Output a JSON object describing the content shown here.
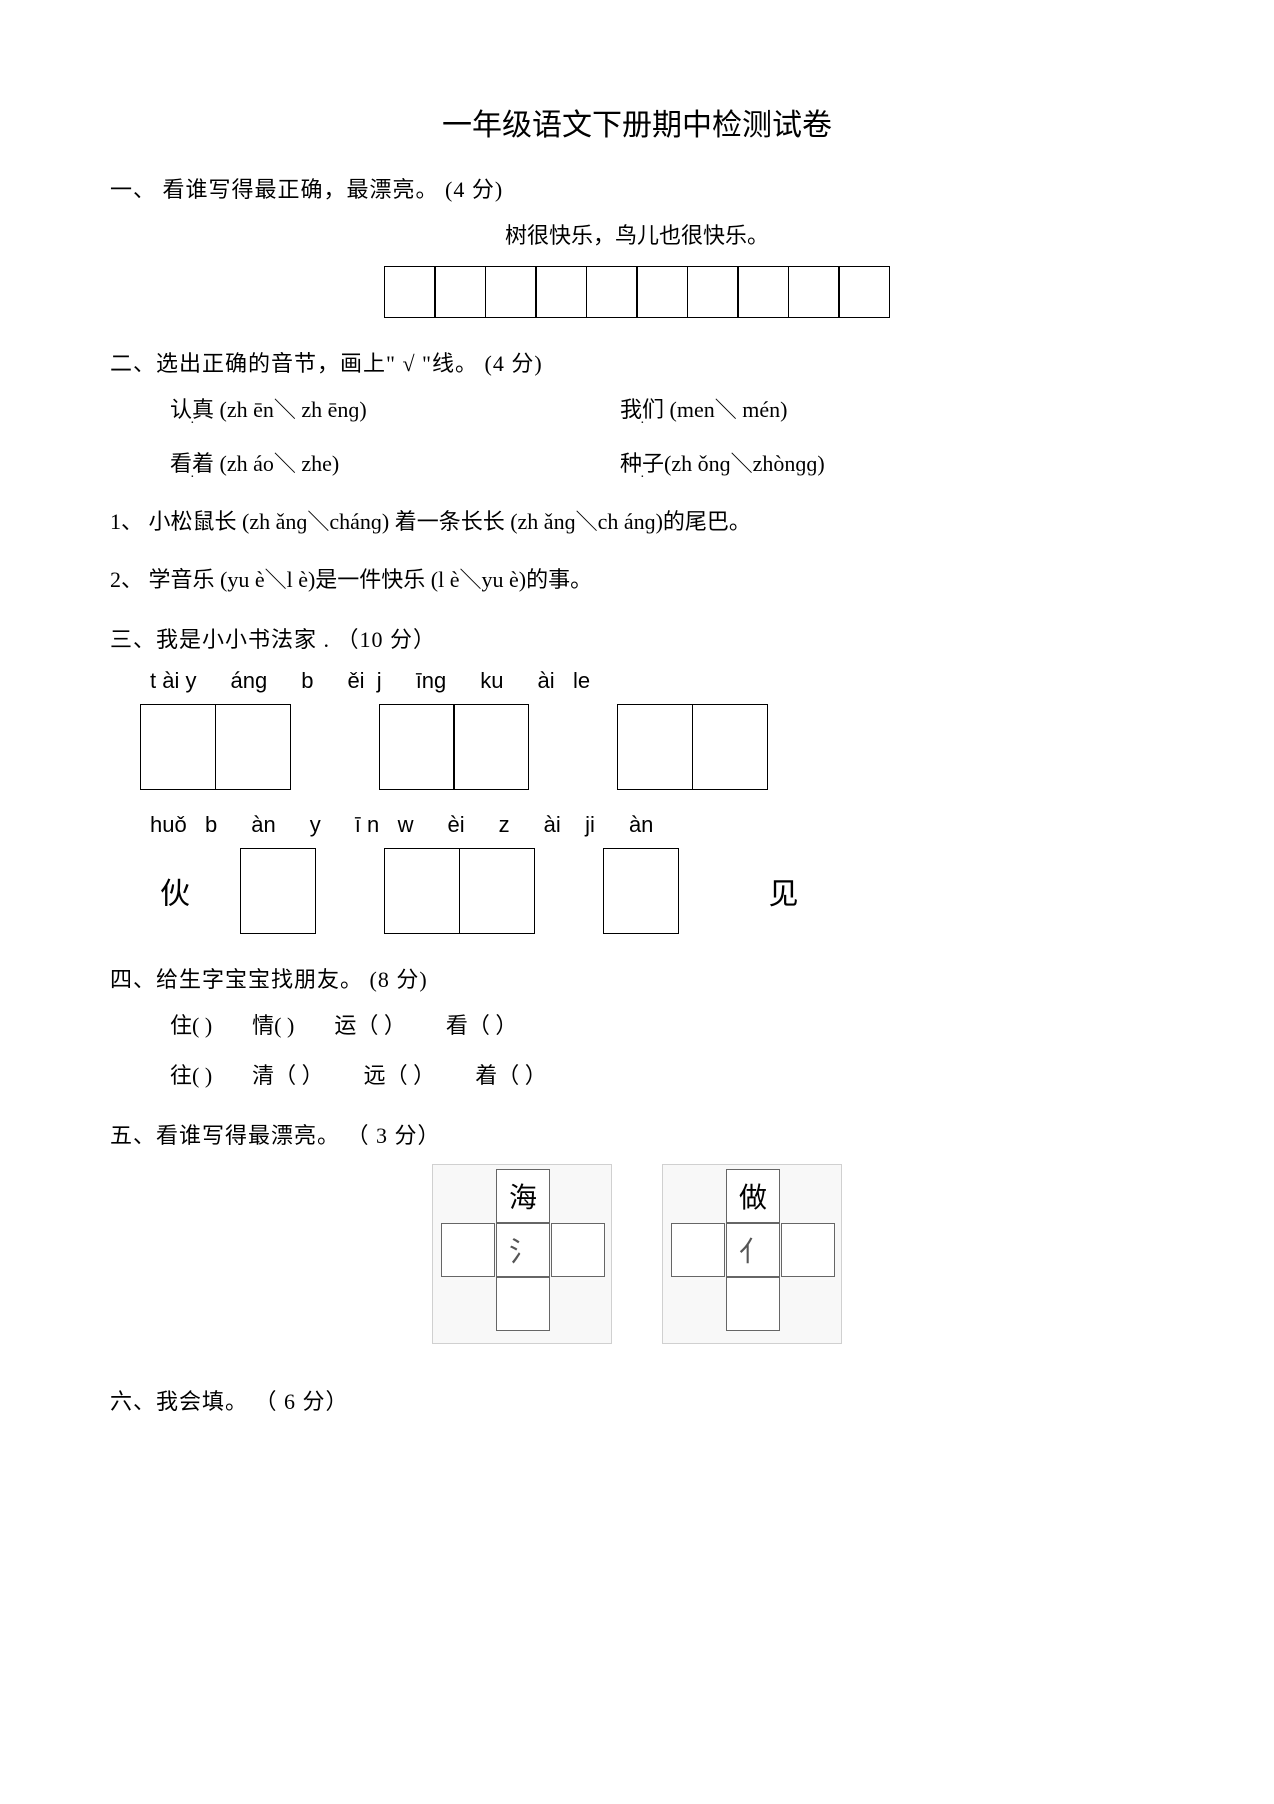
{
  "title": "一年级语文下册期中检测试卷",
  "s1": {
    "head": "一、 看谁写得最正确，最漂亮。   (4 分)",
    "sentence": "树很快乐，鸟儿也很快乐。",
    "cells": 10
  },
  "s2": {
    "head": "二、选出正确的音节，画上\" √ \"线。    (4 分)",
    "rowA": {
      "left": "认真 (zh ēn＼ zh ēnɡ)",
      "right": "我们 (men＼ mén)"
    },
    "rowB": {
      "left": "看着 (zh áo＼ zhe)",
      "right": "种子(zh ǒnɡ＼zhònɡɡ)"
    },
    "line1": "1、  小松鼠长 (zh ǎnɡ＼chánɡ) 着一条长长 (zh ǎnɡ＼ch ánɡ)的尾巴。",
    "line2": "2、  学音乐 (yu è＼l è)是一件快乐 (l è＼yu è)的事。"
  },
  "s3": {
    "head": "三、我是小小书法家 . （10 分）",
    "pin1": [
      "t ài y",
      "ánɡ",
      "b",
      "ěi  j",
      "īnɡ",
      "ku",
      "ài   le"
    ],
    "pin2": [
      "huǒ   b",
      "àn",
      "y",
      "ī n   w",
      "èi",
      "z",
      "ài    ji",
      "àn"
    ],
    "huo": "伙",
    "jian": "见"
  },
  "s4": {
    "head": "四、给生字宝宝找朋友。  (8 分)",
    "rowA": [
      "住(        )",
      "情(        )",
      "运（       ）",
      "看（       ）"
    ],
    "rowB": [
      "往(        )",
      "清（       ）",
      "远（       ）",
      "着（       ）"
    ]
  },
  "s5": {
    "head": "五、看谁写得最漂亮。 （ 3 分）",
    "crossA": {
      "top": "海",
      "mid": "氵"
    },
    "crossB": {
      "top": "做",
      "mid": "亻"
    }
  },
  "s6": {
    "head": "六、我会填。 （ 6 分）"
  },
  "colors": {
    "bg": "#ffffff",
    "text": "#000000",
    "border": "#000000"
  }
}
